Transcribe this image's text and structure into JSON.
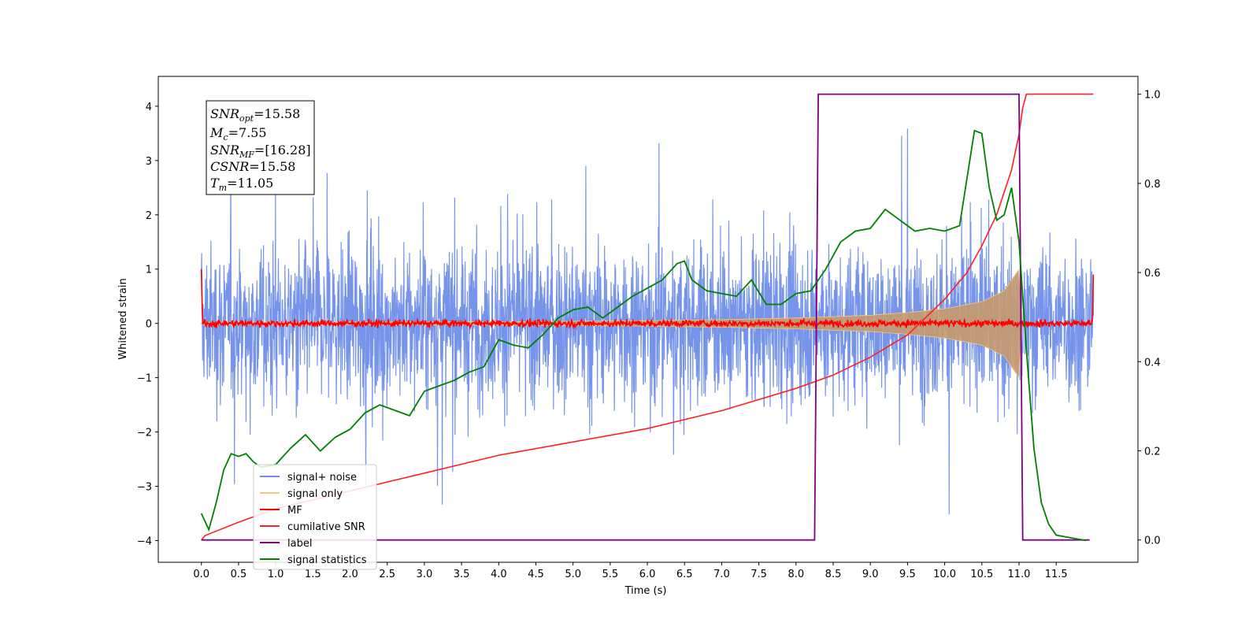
{
  "chart_data": {
    "type": "line",
    "xlabel": "Time (s)",
    "ylabel": "Whitened strain",
    "xlim": [
      -0.58,
      12.6
    ],
    "ylim_left": [
      -4.4,
      4.55
    ],
    "ylim_right": [
      -0.05,
      1.04
    ],
    "x_ticks": [
      "0.0",
      "0.5",
      "1.0",
      "1.5",
      "2.0",
      "2.5",
      "3.0",
      "3.5",
      "4.0",
      "4.5",
      "5.0",
      "5.5",
      "6.0",
      "6.5",
      "7.0",
      "7.5",
      "8.0",
      "8.5",
      "9.0",
      "9.5",
      "10.0",
      "10.5",
      "11.0",
      "11.5"
    ],
    "y_ticks_left": [
      "4",
      "3",
      "2",
      "1",
      "0",
      "−1",
      "−2",
      "−3",
      "−4"
    ],
    "y_ticks_right": [
      "1.0",
      "0.8",
      "0.6",
      "0.4",
      "0.2",
      "0.0"
    ],
    "annotation": {
      "snr_opt": {
        "main": "SNR",
        "sub": "opt",
        "value": "=15.58"
      },
      "mc": {
        "main": "M",
        "sub": "c",
        "value": "=7.55"
      },
      "snr_mf": {
        "main": "SNR",
        "sub": "MF",
        "value": "=[16.28]"
      },
      "csnr": {
        "main": "CSNR",
        "value": "=15.58"
      },
      "tm": {
        "main": "T",
        "sub": "m",
        "value": "=11.05"
      }
    },
    "legend_position": "lower-left",
    "grid": false,
    "series": [
      {
        "name": "signal+ noise",
        "color": "#6f8ee8",
        "axis": "left",
        "description": "noise band approx amplitude ±2, peaks to ±4 between t=0.0 and t=12.0"
      },
      {
        "name": "signal only",
        "color": "#f5c77e",
        "axis": "left",
        "chirp_envelope": {
          "x": [
            0.0,
            4.0,
            6.0,
            7.0,
            8.0,
            9.0,
            9.5,
            10.0,
            10.5,
            10.8,
            11.0,
            11.05
          ],
          "amp": [
            0.02,
            0.03,
            0.05,
            0.07,
            0.1,
            0.15,
            0.2,
            0.27,
            0.4,
            0.6,
            1.0,
            0.0
          ]
        }
      },
      {
        "name": "MF",
        "color": "#ff0000",
        "axis": "left",
        "description": "noise around 0 with amplitude ±0.12, spikes to 1.0 at t=0 and 0.9 at t=12"
      },
      {
        "name": "cumilative SNR",
        "color": "#ff2020",
        "axis": "right",
        "x": [
          0.0,
          0.05,
          0.5,
          1.0,
          2.0,
          3.0,
          4.0,
          5.0,
          6.0,
          7.0,
          8.0,
          8.5,
          9.0,
          9.5,
          10.0,
          10.3,
          10.5,
          10.7,
          10.9,
          11.0,
          11.05,
          11.1,
          12.0
        ],
        "values": [
          0.0,
          0.01,
          0.04,
          0.07,
          0.11,
          0.15,
          0.19,
          0.22,
          0.25,
          0.29,
          0.34,
          0.37,
          0.41,
          0.46,
          0.54,
          0.6,
          0.66,
          0.73,
          0.83,
          0.91,
          0.97,
          1.0,
          1.0
        ]
      },
      {
        "name": "label",
        "color": "#800080",
        "axis": "right",
        "x": [
          0.0,
          8.25,
          8.3,
          11.0,
          11.05,
          11.95
        ],
        "values": [
          0.0,
          0.0,
          1.0,
          1.0,
          0.0,
          0.0
        ]
      },
      {
        "name": "signal statistics",
        "color": "#008000",
        "axis": "left",
        "x": [
          0.0,
          0.1,
          0.2,
          0.3,
          0.4,
          0.5,
          0.6,
          0.7,
          0.8,
          1.0,
          1.2,
          1.4,
          1.6,
          1.8,
          2.0,
          2.2,
          2.4,
          2.6,
          2.8,
          3.0,
          3.2,
          3.4,
          3.6,
          3.8,
          4.0,
          4.2,
          4.4,
          4.6,
          4.8,
          5.0,
          5.2,
          5.4,
          5.6,
          5.8,
          6.0,
          6.2,
          6.4,
          6.5,
          6.6,
          6.8,
          7.0,
          7.2,
          7.4,
          7.6,
          7.8,
          8.0,
          8.2,
          8.4,
          8.6,
          8.8,
          9.0,
          9.2,
          9.4,
          9.6,
          9.8,
          10.0,
          10.2,
          10.4,
          10.5,
          10.6,
          10.7,
          10.8,
          10.9,
          11.0,
          11.1,
          11.2,
          11.3,
          11.4,
          11.5,
          11.7,
          11.9
        ],
        "values": [
          -3.5,
          -3.8,
          -3.3,
          -2.7,
          -2.4,
          -2.45,
          -2.4,
          -2.55,
          -2.65,
          -2.6,
          -2.3,
          -2.05,
          -2.35,
          -2.1,
          -1.95,
          -1.65,
          -1.5,
          -1.6,
          -1.7,
          -1.25,
          -1.15,
          -1.05,
          -0.9,
          -0.8,
          -0.3,
          -0.4,
          -0.45,
          -0.2,
          0.1,
          0.25,
          0.3,
          0.1,
          0.3,
          0.5,
          0.65,
          0.8,
          1.1,
          1.15,
          0.8,
          0.6,
          0.55,
          0.5,
          0.8,
          0.35,
          0.35,
          0.55,
          0.6,
          1.0,
          1.5,
          1.7,
          1.75,
          2.1,
          1.9,
          1.7,
          1.75,
          1.7,
          1.8,
          3.55,
          3.5,
          2.5,
          1.9,
          2.0,
          2.5,
          1.5,
          -0.5,
          -2.3,
          -3.3,
          -3.7,
          -3.9,
          -3.95,
          -4.0
        ]
      }
    ]
  }
}
